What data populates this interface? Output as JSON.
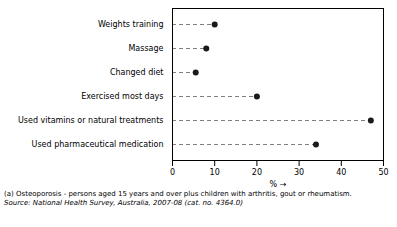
{
  "chart_data": {
    "type": "lollipop",
    "orientation": "horizontal",
    "categories": [
      "Weights training",
      "Massage",
      "Changed diet",
      "Exercised most days",
      "Used vitamins or natural treatments",
      "Used pharmaceutical medication"
    ],
    "values": [
      10.0,
      8.0,
      5.5,
      20.0,
      47.0,
      34.0
    ],
    "xlabel": "%",
    "xlim": [
      0,
      50
    ],
    "xticks": [
      0,
      10,
      20,
      30,
      40,
      50
    ],
    "color": "#1a1a1a",
    "marker": "circle",
    "line_style": "dashed",
    "footnotes": [
      "(a) Osteoporosis - persons aged 15 years and over plus children with arthritis, gout or rheumatism.",
      "Source: National Health Survey, Australia, 2007-08 (cat. no. 4364.0)"
    ]
  }
}
